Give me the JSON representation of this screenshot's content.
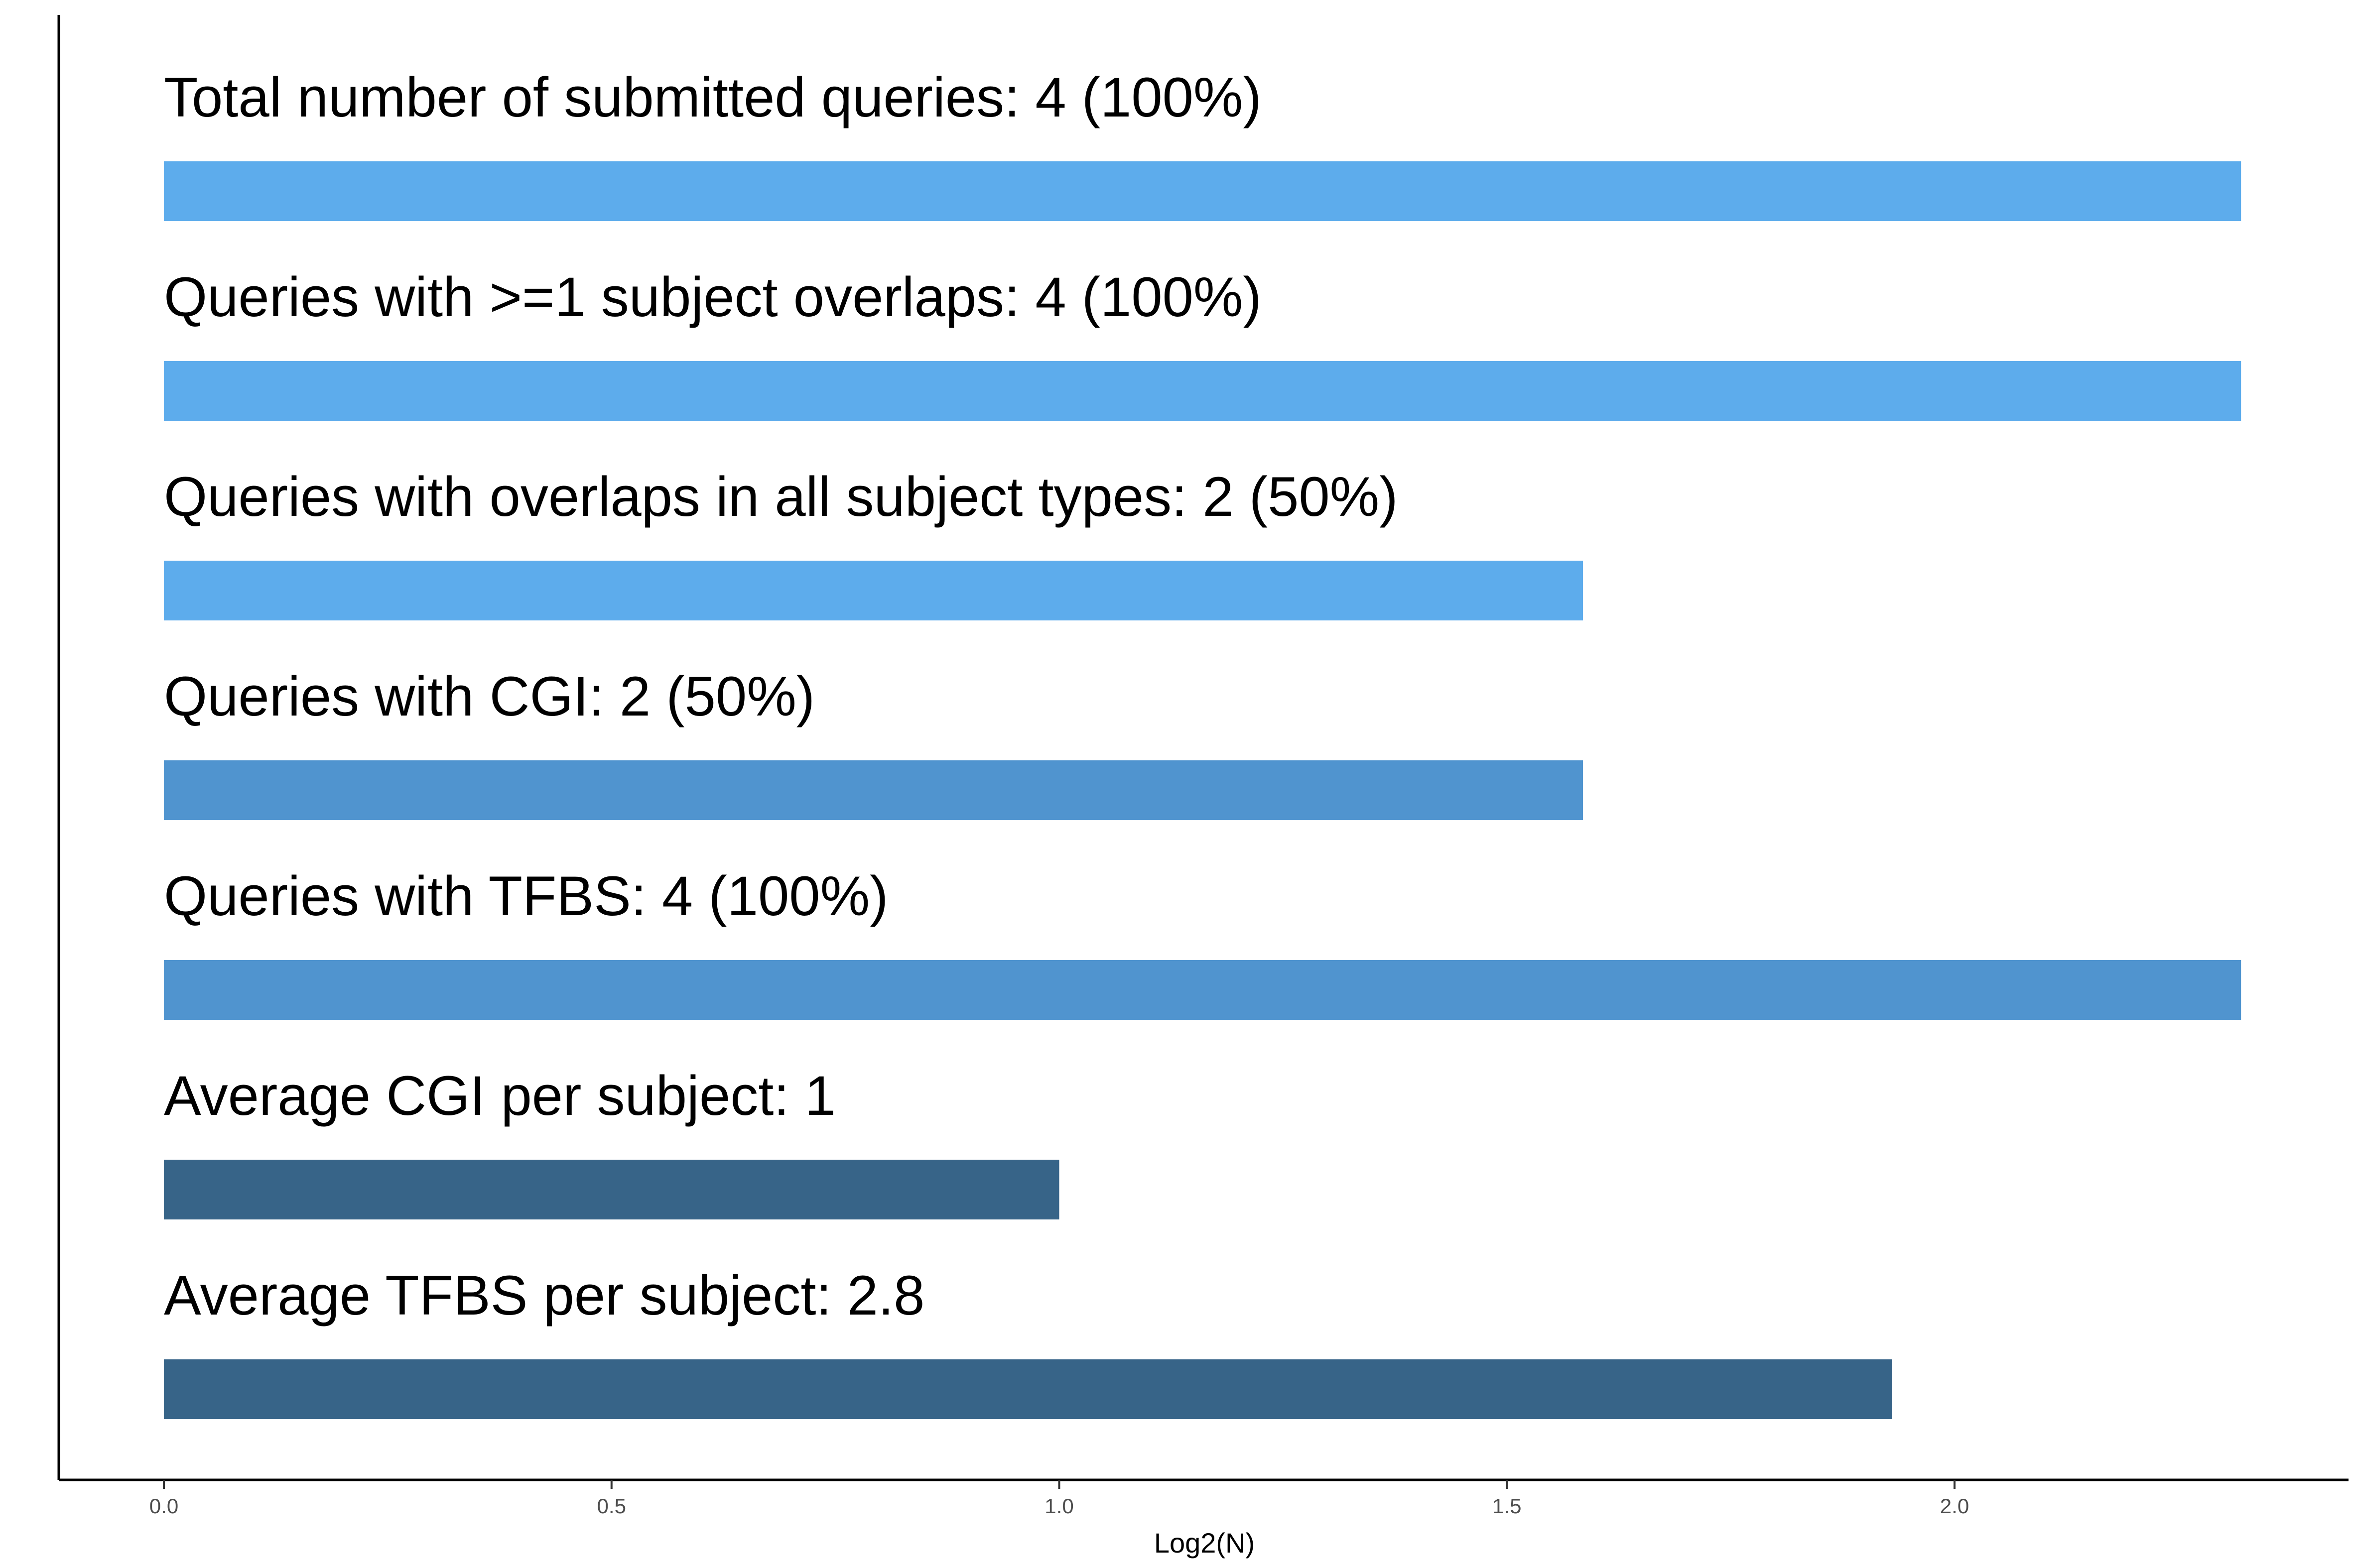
{
  "chart_data": {
    "type": "bar",
    "orientation": "horizontal",
    "xlabel": "Log2(N)",
    "ylabel": "",
    "xlim": [
      0,
      2.4
    ],
    "x_ticks": [
      "0.0",
      "0.5",
      "1.0",
      "1.5",
      "2.0"
    ],
    "x_tick_values": [
      0,
      0.5,
      1.0,
      1.5,
      2.0
    ],
    "grid": false,
    "categories": [
      "Total number of submitted queries: 4 (100%)",
      "Queries with >=1 subject overlaps: 4 (100%)",
      "Queries with overlaps in all subject types: 2 (50%)",
      "Queries with CGI: 2 (50%)",
      "Queries with TFBS: 4 (100%)",
      "Average CGI per subject: 1",
      "Average TFBS per subject: 2.8"
    ],
    "values": [
      2.32,
      2.32,
      1.585,
      1.585,
      2.32,
      1.0,
      1.93
    ],
    "colors": [
      "#5dacec",
      "#5dacec",
      "#5dacec",
      "#5094cf",
      "#5094cf",
      "#376488",
      "#376488"
    ]
  }
}
